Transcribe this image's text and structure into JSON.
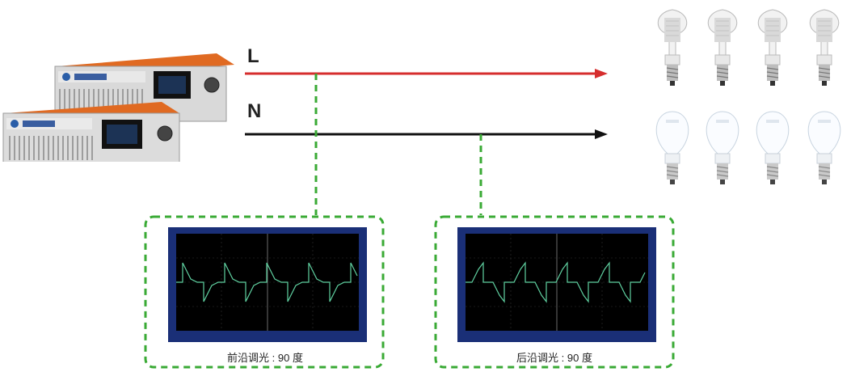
{
  "lines": {
    "live_label": "L",
    "neutral_label": "N"
  },
  "captions": {
    "leading_edge": "前沿调光 : 90 度",
    "trailing_edge": "后沿调光 : 90 度"
  },
  "colors": {
    "live_line": "#d62d2d",
    "neutral_line": "#111111",
    "probe_dash": "#3aaa35",
    "trace": "#5fd0a0"
  },
  "bulb_rows": [
    {
      "count": 4,
      "state": "on"
    },
    {
      "count": 4,
      "state": "off"
    }
  ]
}
